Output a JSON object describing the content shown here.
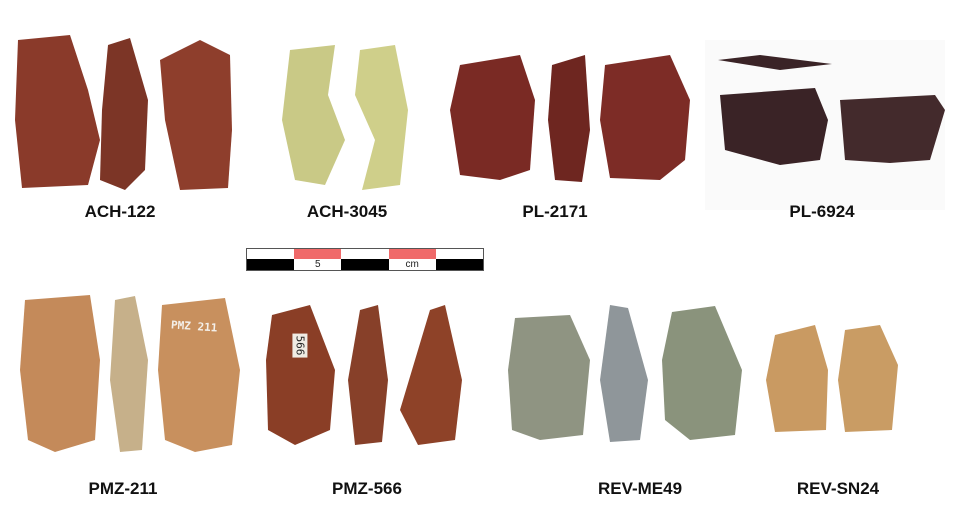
{
  "specimens": [
    {
      "id": "ACH-122",
      "color": "#8a3a2a"
    },
    {
      "id": "ACH-3045",
      "color": "#c9c986"
    },
    {
      "id": "PL-2171",
      "color": "#7a2a24"
    },
    {
      "id": "PL-6924",
      "color": "#3a2326"
    },
    {
      "id": "PMZ-211",
      "color": "#c48a5a"
    },
    {
      "id": "PMZ-566",
      "color": "#8a3e26"
    },
    {
      "id": "REV-ME49",
      "color": "#8f9482"
    },
    {
      "id": "REV-SN24",
      "color": "#c99a62"
    }
  ],
  "scale_bar": {
    "label_number": "5",
    "label_unit": "cm",
    "segment_colors": [
      "#ffffff",
      "#f06a6a",
      "#000000"
    ]
  },
  "handwritten_marks": [
    "PMZ 211",
    "566"
  ]
}
